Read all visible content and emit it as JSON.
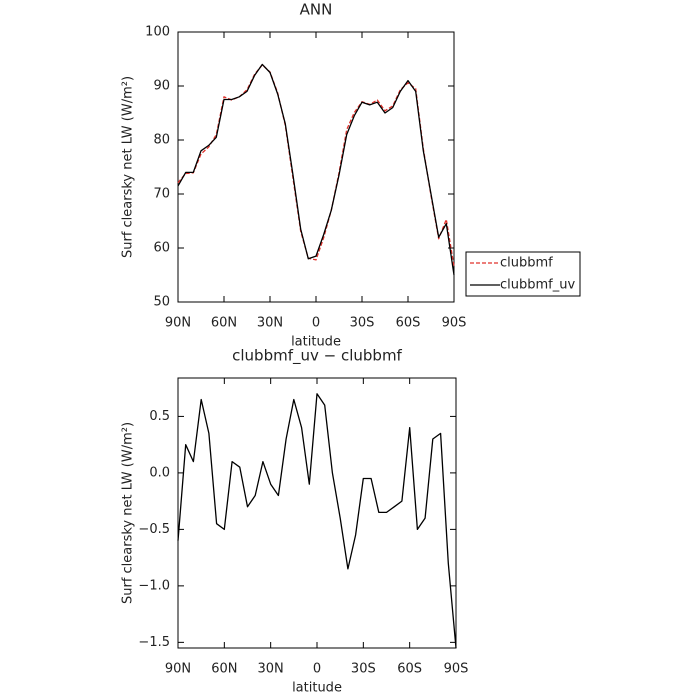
{
  "chart_data": [
    {
      "type": "line",
      "title": "ANN",
      "x_label": "latitude",
      "y_label": "Surf clearsky net LW (W/m²)",
      "x": [
        90,
        85,
        80,
        75,
        70,
        65,
        60,
        55,
        50,
        45,
        40,
        35,
        30,
        25,
        20,
        15,
        10,
        5,
        0,
        -5,
        -10,
        -15,
        -20,
        -25,
        -30,
        -35,
        -40,
        -45,
        -50,
        -55,
        -60,
        -65,
        -70,
        -75,
        -80,
        -85,
        -90
      ],
      "xlim": [
        90,
        -90
      ],
      "xticks": [
        {
          "value": 90,
          "label": "90N"
        },
        {
          "value": 60,
          "label": "60N"
        },
        {
          "value": 30,
          "label": "30N"
        },
        0,
        {
          "value": -30,
          "label": "30S"
        },
        {
          "value": -60,
          "label": "60S"
        },
        {
          "value": -90,
          "label": "90S"
        }
      ],
      "ylim": [
        50,
        100
      ],
      "yticks": [
        50,
        60,
        70,
        80,
        90,
        100
      ],
      "legend": "right",
      "series": [
        {
          "name": "clubbmf",
          "color": "#e0302a",
          "dash": true,
          "values": [
            72.1,
            73.8,
            73.9,
            77.4,
            78.7,
            81.0,
            88.0,
            87.4,
            88.0,
            89.3,
            92.2,
            93.9,
            92.6,
            88.7,
            82.7,
            72.9,
            63.1,
            58.1,
            57.8,
            61.9,
            67.0,
            73.9,
            81.9,
            85.1,
            87.1,
            86.6,
            87.4,
            85.4,
            86.3,
            89.3,
            90.6,
            89.5,
            78.4,
            69.7,
            61.7,
            65.3,
            56.6
          ]
        },
        {
          "name": "clubbmf_uv",
          "color": "#000000",
          "dash": false,
          "values": [
            71.5,
            74,
            74,
            78,
            79,
            80.5,
            87.5,
            87.5,
            88,
            89,
            92,
            94,
            92.5,
            88.5,
            83,
            73.5,
            63.5,
            58,
            58.5,
            62.5,
            67,
            73.5,
            81,
            84.5,
            87,
            86.5,
            87,
            85,
            86,
            89,
            91,
            89,
            78,
            70,
            62,
            64.5,
            55
          ]
        }
      ]
    },
    {
      "type": "line",
      "title": "clubbmf_uv − clubbmf",
      "x_label": "latitude",
      "y_label": "Surf clearsky net LW (W/m²)",
      "x": [
        90,
        85,
        80,
        75,
        70,
        65,
        60,
        55,
        50,
        45,
        40,
        35,
        30,
        25,
        20,
        15,
        10,
        5,
        0,
        -5,
        -10,
        -15,
        -20,
        -25,
        -30,
        -35,
        -40,
        -45,
        -50,
        -55,
        -60,
        -65,
        -70,
        -75,
        -80,
        -85,
        -90
      ],
      "xlim": [
        90,
        -90
      ],
      "xticks": [
        {
          "value": 90,
          "label": "90N"
        },
        {
          "value": 60,
          "label": "60N"
        },
        {
          "value": 30,
          "label": "30N"
        },
        0,
        {
          "value": -30,
          "label": "30S"
        },
        {
          "value": -60,
          "label": "60S"
        },
        {
          "value": -90,
          "label": "90S"
        }
      ],
      "ylim": [
        -1.55,
        0.84
      ],
      "yticks": [
        {
          "value": -1.5,
          "label": "−1.5"
        },
        {
          "value": -1,
          "label": "−1.0"
        },
        {
          "value": -0.5,
          "label": "−0.5"
        },
        {
          "value": 0,
          "label": "0.0"
        },
        0.5
      ],
      "series": [
        {
          "color": "#000000",
          "dash": false,
          "values": [
            -0.6,
            0.25,
            0.1,
            0.65,
            0.35,
            -0.45,
            -0.5,
            0.1,
            0.05,
            -0.3,
            -0.2,
            0.1,
            -0.1,
            -0.2,
            0.3,
            0.65,
            0.4,
            -0.1,
            0.7,
            0.6,
            0.0,
            -0.4,
            -0.85,
            -0.55,
            -0.05,
            -0.05,
            -0.35,
            -0.35,
            -0.3,
            -0.25,
            0.4,
            -0.5,
            -0.4,
            0.3,
            0.35,
            -0.8,
            -1.55
          ]
        }
      ]
    }
  ]
}
